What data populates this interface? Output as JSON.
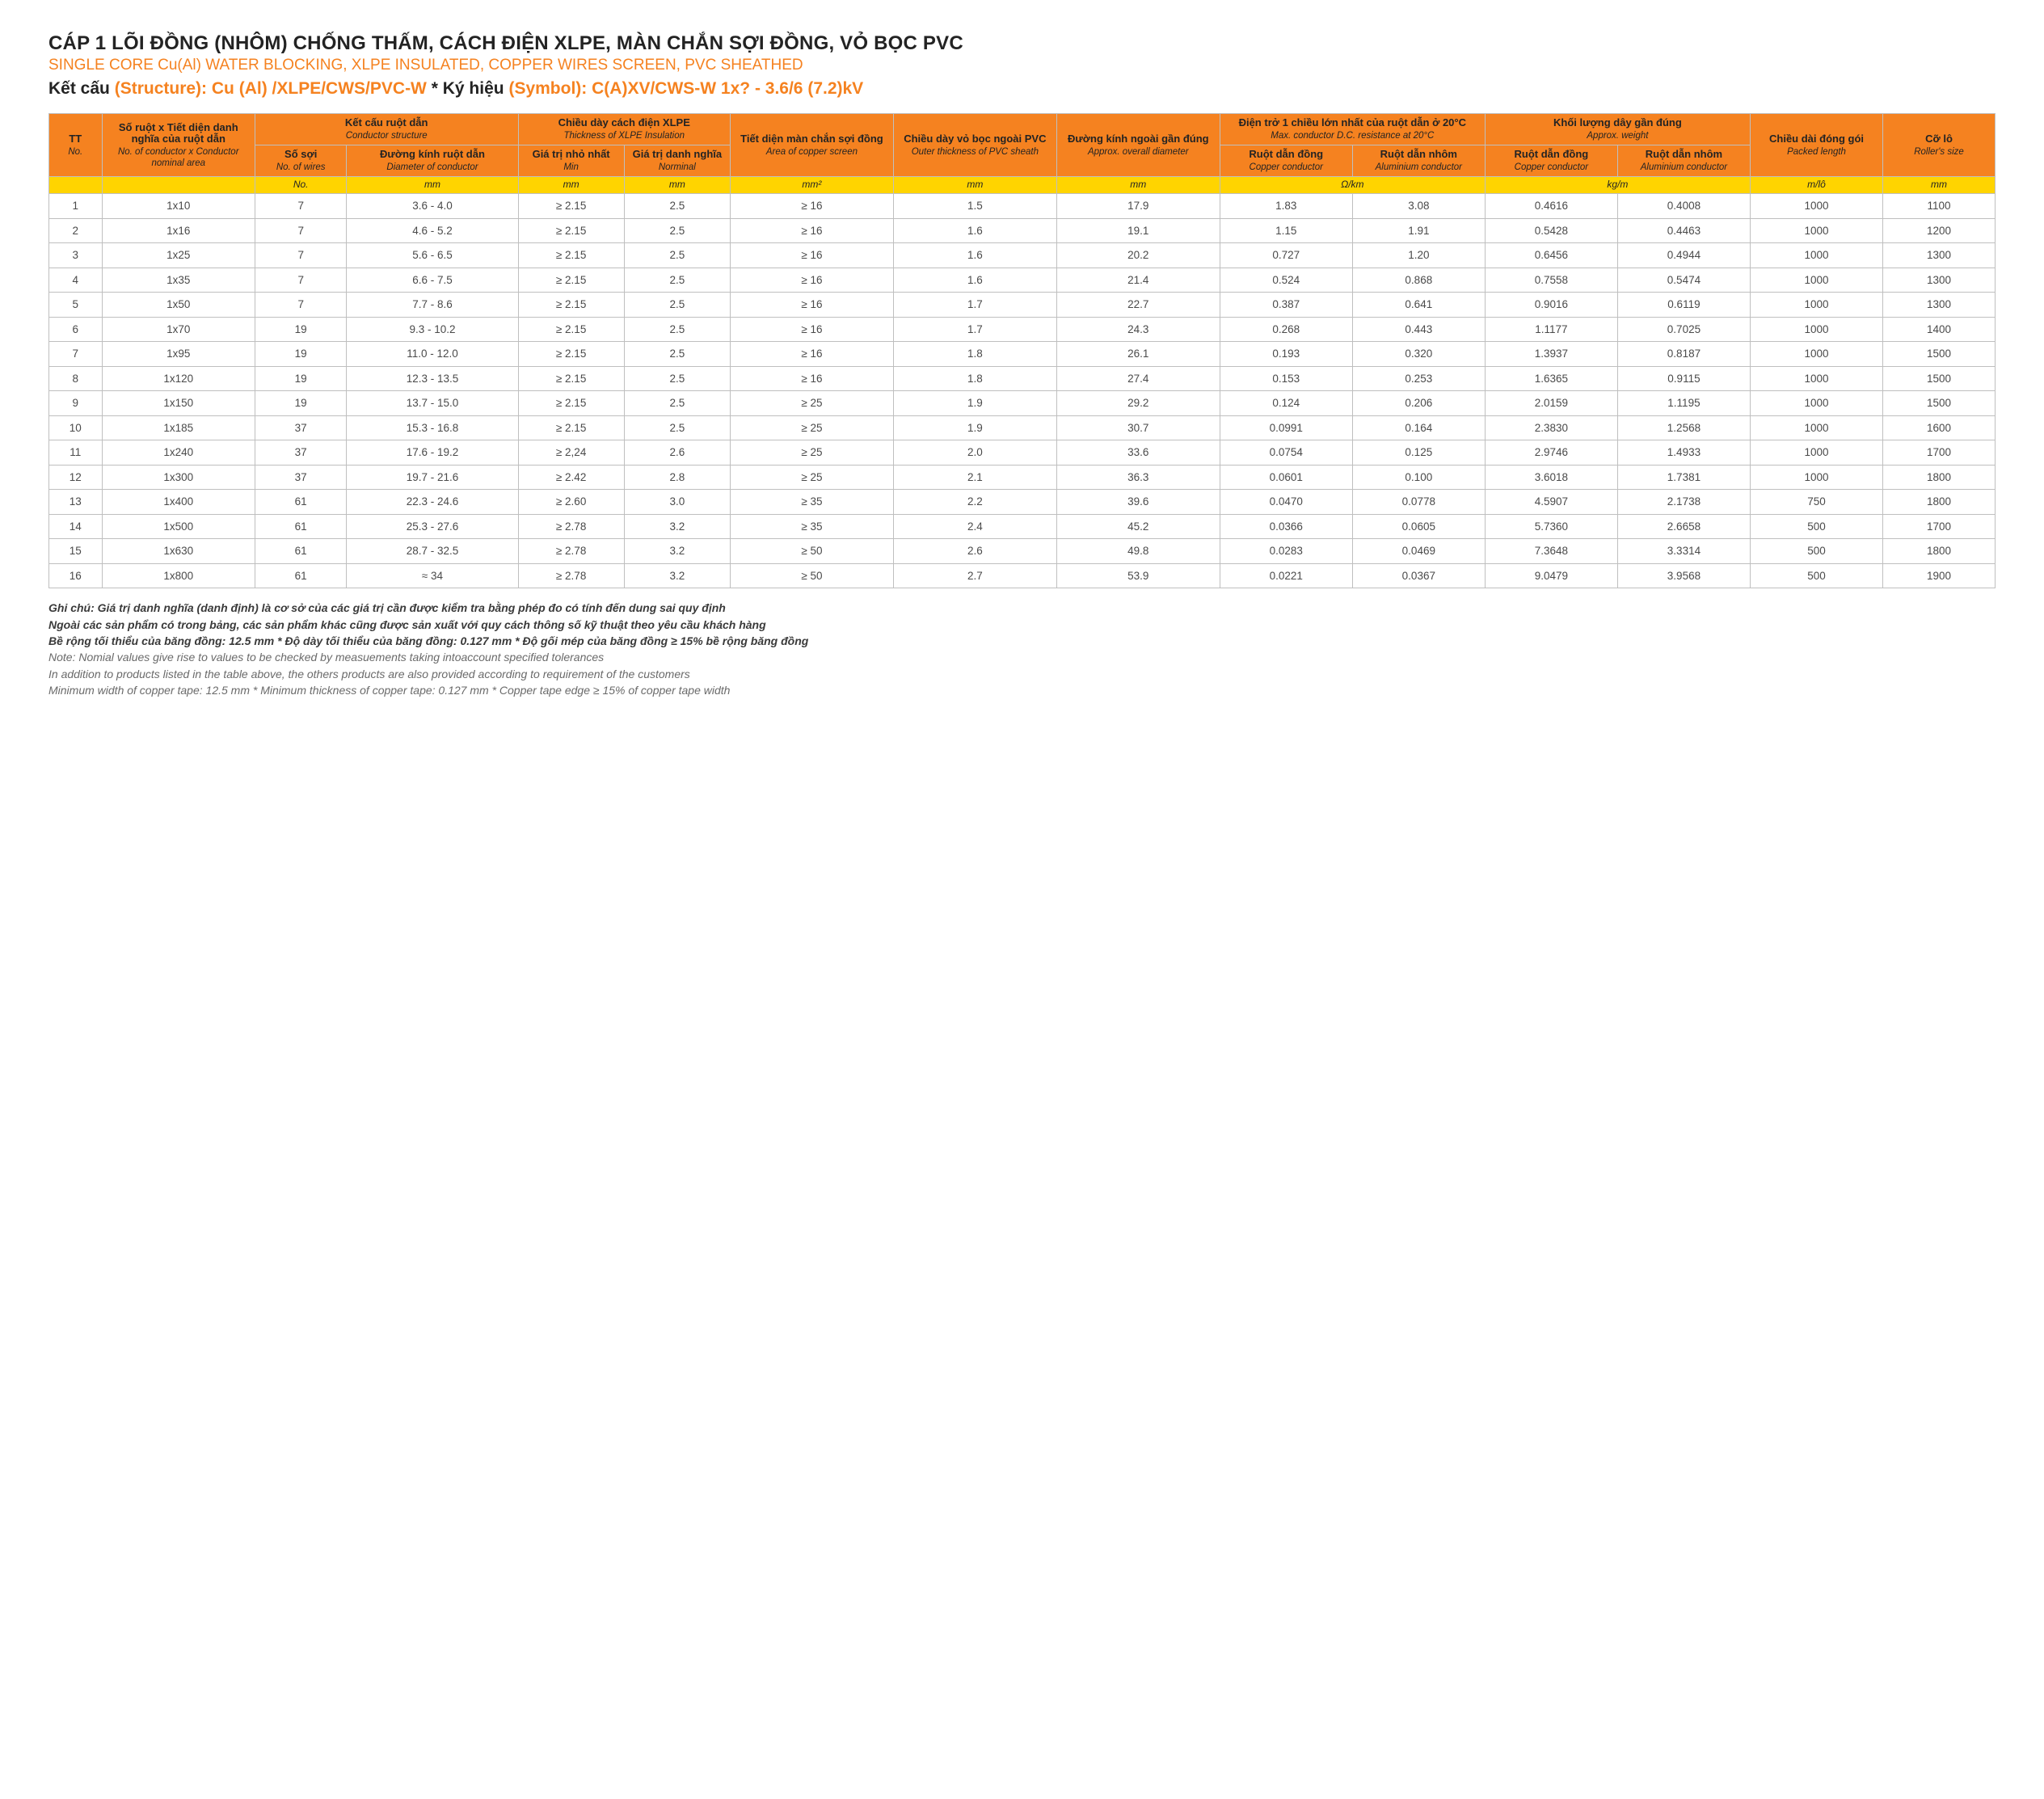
{
  "titles": {
    "vi": "CÁP 1 LÕI ĐỒNG (NHÔM) CHỐNG THẤM, CÁCH ĐIỆN XLPE, MÀN CHẮN SỢI ĐỒNG, VỎ BỌC PVC",
    "en": "SINGLE CORE Cu(Al) WATER BLOCKING, XLPE INSULATED, COPPER WIRES SCREEN, PVC SHEATHED",
    "struct_lbl_vi": "Kết cấu",
    "struct_lbl_en": "(Structure):",
    "struct_val": "Cu (Al) /XLPE/CWS/PVC-W",
    "sep": " * ",
    "sym_lbl_vi": "Ký hiệu",
    "sym_lbl_en": "(Symbol):",
    "sym_val": "C(A)XV/CWS-W 1x? - 3.6/6 (7.2)kV"
  },
  "palette": {
    "header_bg": "#f58220",
    "units_bg": "#ffd400",
    "border": "#bfbfbf",
    "accent": "#f58220"
  },
  "columns": {
    "tt": {
      "vi": "TT",
      "en": "No."
    },
    "spec": {
      "vi": "Số ruột x Tiết diện danh nghĩa của ruột dẫn",
      "en": "No. of conductor x Conductor nominal area"
    },
    "cond_grp": {
      "vi": "Kết cấu ruột dẫn",
      "en": "Conductor structure"
    },
    "nwires": {
      "vi": "Số sợi",
      "en": "No. of wires"
    },
    "dcond": {
      "vi": "Đường kính ruột dẫn",
      "en": "Diameter of conductor"
    },
    "xlpe_grp": {
      "vi": "Chiều dày cách điện XLPE",
      "en": "Thickness of XLPE Insulation"
    },
    "min": {
      "vi": "Giá trị nhỏ nhất",
      "en": "Min"
    },
    "nom": {
      "vi": "Giá trị danh nghĩa",
      "en": "Norminal"
    },
    "screen": {
      "vi": "Tiết diện màn chắn sợi đồng",
      "en": "Area of copper screen"
    },
    "pvc": {
      "vi": "Chiều dày vỏ bọc ngoài PVC",
      "en": "Outer thickness of PVC sheath"
    },
    "od": {
      "vi": "Đường kính ngoài gần đúng",
      "en": "Approx. overall diameter"
    },
    "res_grp": {
      "vi": "Điện trở 1 chiều lớn nhất của ruột dẫn ở 20°C",
      "en": "Max. conductor D.C. resistance at 20°C"
    },
    "rcu": {
      "vi": "Ruột dẫn đồng",
      "en": "Copper conductor"
    },
    "ral": {
      "vi": "Ruột dẫn nhôm",
      "en": "Aluminium conductor"
    },
    "wt_grp": {
      "vi": "Khối lượng dây gần đúng",
      "en": "Approx. weight"
    },
    "wcu": {
      "vi": "Ruột dẫn đồng",
      "en": "Copper conductor"
    },
    "wal": {
      "vi": "Ruột dẫn nhôm",
      "en": "Aluminium conductor"
    },
    "len": {
      "vi": "Chiều dài đóng gói",
      "en": "Packed length"
    },
    "roll": {
      "vi": "Cỡ lô",
      "en": "Roller's size"
    }
  },
  "units": {
    "nwires": "No.",
    "dcond": "mm",
    "min": "mm",
    "nom": "mm",
    "screen": "mm²",
    "pvc": "mm",
    "od": "mm",
    "res": "Ω/km",
    "wt": "kg/m",
    "len": "m/lô",
    "roll": "mm"
  },
  "rows": [
    {
      "tt": 1,
      "spec": "1x10",
      "nw": 7,
      "dia": "3.6 - 4.0",
      "min": "≥ 2.15",
      "nom": "2.5",
      "scr": "≥ 16",
      "pvc": "1.5",
      "od": "17.9",
      "rcu": "1.83",
      "ral": "3.08",
      "wcu": "0.4616",
      "wal": "0.4008",
      "len": "1000",
      "roll": "1100"
    },
    {
      "tt": 2,
      "spec": "1x16",
      "nw": 7,
      "dia": "4.6 - 5.2",
      "min": "≥ 2.15",
      "nom": "2.5",
      "scr": "≥ 16",
      "pvc": "1.6",
      "od": "19.1",
      "rcu": "1.15",
      "ral": "1.91",
      "wcu": "0.5428",
      "wal": "0.4463",
      "len": "1000",
      "roll": "1200"
    },
    {
      "tt": 3,
      "spec": "1x25",
      "nw": 7,
      "dia": "5.6 - 6.5",
      "min": "≥ 2.15",
      "nom": "2.5",
      "scr": "≥ 16",
      "pvc": "1.6",
      "od": "20.2",
      "rcu": "0.727",
      "ral": "1.20",
      "wcu": "0.6456",
      "wal": "0.4944",
      "len": "1000",
      "roll": "1300"
    },
    {
      "tt": 4,
      "spec": "1x35",
      "nw": 7,
      "dia": "6.6 - 7.5",
      "min": "≥ 2.15",
      "nom": "2.5",
      "scr": "≥ 16",
      "pvc": "1.6",
      "od": "21.4",
      "rcu": "0.524",
      "ral": "0.868",
      "wcu": "0.7558",
      "wal": "0.5474",
      "len": "1000",
      "roll": "1300"
    },
    {
      "tt": 5,
      "spec": "1x50",
      "nw": 7,
      "dia": "7.7 - 8.6",
      "min": "≥ 2.15",
      "nom": "2.5",
      "scr": "≥ 16",
      "pvc": "1.7",
      "od": "22.7",
      "rcu": "0.387",
      "ral": "0.641",
      "wcu": "0.9016",
      "wal": "0.6119",
      "len": "1000",
      "roll": "1300"
    },
    {
      "tt": 6,
      "spec": "1x70",
      "nw": 19,
      "dia": "9.3 - 10.2",
      "min": "≥ 2.15",
      "nom": "2.5",
      "scr": "≥ 16",
      "pvc": "1.7",
      "od": "24.3",
      "rcu": "0.268",
      "ral": "0.443",
      "wcu": "1.1177",
      "wal": "0.7025",
      "len": "1000",
      "roll": "1400"
    },
    {
      "tt": 7,
      "spec": "1x95",
      "nw": 19,
      "dia": "11.0 - 12.0",
      "min": "≥ 2.15",
      "nom": "2.5",
      "scr": "≥ 16",
      "pvc": "1.8",
      "od": "26.1",
      "rcu": "0.193",
      "ral": "0.320",
      "wcu": "1.3937",
      "wal": "0.8187",
      "len": "1000",
      "roll": "1500"
    },
    {
      "tt": 8,
      "spec": "1x120",
      "nw": 19,
      "dia": "12.3 - 13.5",
      "min": "≥ 2.15",
      "nom": "2.5",
      "scr": "≥ 16",
      "pvc": "1.8",
      "od": "27.4",
      "rcu": "0.153",
      "ral": "0.253",
      "wcu": "1.6365",
      "wal": "0.9115",
      "len": "1000",
      "roll": "1500"
    },
    {
      "tt": 9,
      "spec": "1x150",
      "nw": 19,
      "dia": "13.7 - 15.0",
      "min": "≥ 2.15",
      "nom": "2.5",
      "scr": "≥ 25",
      "pvc": "1.9",
      "od": "29.2",
      "rcu": "0.124",
      "ral": "0.206",
      "wcu": "2.0159",
      "wal": "1.1195",
      "len": "1000",
      "roll": "1500"
    },
    {
      "tt": 10,
      "spec": "1x185",
      "nw": 37,
      "dia": "15.3 - 16.8",
      "min": "≥ 2.15",
      "nom": "2.5",
      "scr": "≥ 25",
      "pvc": "1.9",
      "od": "30.7",
      "rcu": "0.0991",
      "ral": "0.164",
      "wcu": "2.3830",
      "wal": "1.2568",
      "len": "1000",
      "roll": "1600"
    },
    {
      "tt": 11,
      "spec": "1x240",
      "nw": 37,
      "dia": "17.6 - 19.2",
      "min": "≥ 2,24",
      "nom": "2.6",
      "scr": "≥ 25",
      "pvc": "2.0",
      "od": "33.6",
      "rcu": "0.0754",
      "ral": "0.125",
      "wcu": "2.9746",
      "wal": "1.4933",
      "len": "1000",
      "roll": "1700"
    },
    {
      "tt": 12,
      "spec": "1x300",
      "nw": 37,
      "dia": "19.7 - 21.6",
      "min": "≥ 2.42",
      "nom": "2.8",
      "scr": "≥ 25",
      "pvc": "2.1",
      "od": "36.3",
      "rcu": "0.0601",
      "ral": "0.100",
      "wcu": "3.6018",
      "wal": "1.7381",
      "len": "1000",
      "roll": "1800"
    },
    {
      "tt": 13,
      "spec": "1x400",
      "nw": 61,
      "dia": "22.3 - 24.6",
      "min": "≥ 2.60",
      "nom": "3.0",
      "scr": "≥ 35",
      "pvc": "2.2",
      "od": "39.6",
      "rcu": "0.0470",
      "ral": "0.0778",
      "wcu": "4.5907",
      "wal": "2.1738",
      "len": "750",
      "roll": "1800"
    },
    {
      "tt": 14,
      "spec": "1x500",
      "nw": 61,
      "dia": "25.3 - 27.6",
      "min": "≥ 2.78",
      "nom": "3.2",
      "scr": "≥ 35",
      "pvc": "2.4",
      "od": "45.2",
      "rcu": "0.0366",
      "ral": "0.0605",
      "wcu": "5.7360",
      "wal": "2.6658",
      "len": "500",
      "roll": "1700"
    },
    {
      "tt": 15,
      "spec": "1x630",
      "nw": 61,
      "dia": "28.7 - 32.5",
      "min": "≥ 2.78",
      "nom": "3.2",
      "scr": "≥ 50",
      "pvc": "2.6",
      "od": "49.8",
      "rcu": "0.0283",
      "ral": "0.0469",
      "wcu": "7.3648",
      "wal": "3.3314",
      "len": "500",
      "roll": "1800"
    },
    {
      "tt": 16,
      "spec": "1x800",
      "nw": 61,
      "dia": "≈ 34",
      "min": "≥ 2.78",
      "nom": "3.2",
      "scr": "≥ 50",
      "pvc": "2.7",
      "od": "53.9",
      "rcu": "0.0221",
      "ral": "0.0367",
      "wcu": "9.0479",
      "wal": "3.9568",
      "len": "500",
      "roll": "1900"
    }
  ],
  "notes": {
    "vi1": "Ghi chú: Giá trị danh nghĩa (danh định) là cơ sở của các giá trị cần được kiểm tra bằng phép đo có tính đến dung sai quy định",
    "vi2": "Ngoài các sản phẩm có trong bảng, các sản phẩm khác cũng được sản xuất với quy cách thông số kỹ thuật theo yêu cầu khách hàng",
    "vi3": "Bề rộng tối thiểu của băng đồng: 12.5 mm * Độ dày tối thiểu của băng đồng: 0.127 mm * Độ gối mép của băng đồng ≥ 15% bề rộng băng đồng",
    "en1": "Note: Nomial values give rise to values to be checked by measuements taking intoaccount specified tolerances",
    "en2": "In addition to products listed in the table above, the others products are also provided according to requirement of the customers",
    "en3": "Minimum width of copper tape: 12.5 mm * Minimum thickness of copper tape: 0.127 mm * Copper tape edge ≥ 15% of copper tape width"
  }
}
